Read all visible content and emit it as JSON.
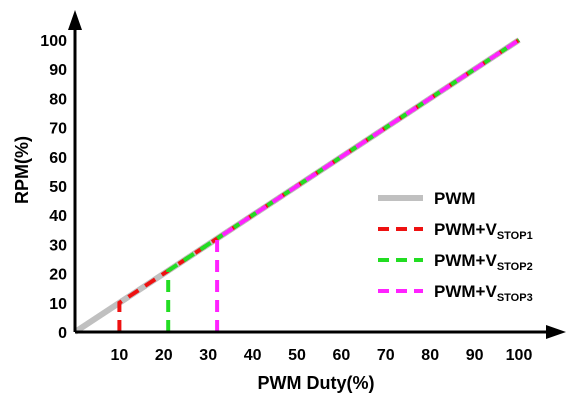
{
  "chart_data": {
    "type": "line",
    "xlabel": "PWM Duty(%)",
    "ylabel": "RPM(%)",
    "xlim": [
      0,
      100
    ],
    "ylim": [
      0,
      100
    ],
    "x_ticks": [
      10,
      20,
      30,
      40,
      50,
      60,
      70,
      80,
      90,
      100
    ],
    "y_ticks": [
      0,
      10,
      20,
      30,
      40,
      50,
      60,
      70,
      80,
      90,
      100
    ],
    "legend_position": "right",
    "series": [
      {
        "name": "PWM",
        "color": "#c0c0c0",
        "style": "solid",
        "x": [
          0,
          100
        ],
        "y": [
          0,
          100
        ]
      },
      {
        "name": "PWM+VSTOP1",
        "legend_main": "PWM+V",
        "legend_sub": "STOP1",
        "color": "#ee1111",
        "style": "dashed",
        "x": [
          10,
          10,
          100
        ],
        "y": [
          0,
          10,
          100
        ]
      },
      {
        "name": "PWM+VSTOP2",
        "legend_main": "PWM+V",
        "legend_sub": "STOP2",
        "color": "#22dd22",
        "style": "dashed",
        "x": [
          21,
          21,
          100
        ],
        "y": [
          0,
          21,
          100
        ]
      },
      {
        "name": "PWM+VSTOP3",
        "legend_main": "PWM+V",
        "legend_sub": "STOP3",
        "color": "#ff22ff",
        "style": "dashed",
        "x": [
          32,
          32,
          100
        ],
        "y": [
          0,
          32,
          100
        ]
      }
    ]
  }
}
